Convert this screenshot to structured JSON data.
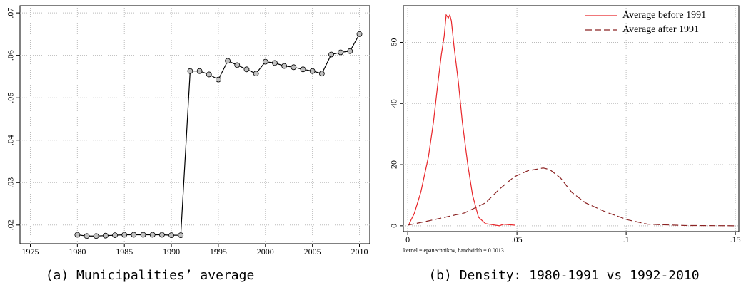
{
  "chart_data": [
    {
      "type": "line",
      "caption": "(a) Municipalities’ average",
      "xlim": [
        1973.9,
        2011.1
      ],
      "xticks": [
        1975,
        1980,
        1985,
        1990,
        1995,
        2000,
        2005,
        2010
      ],
      "ylim": [
        0.0156,
        0.0717
      ],
      "yticks": [
        {
          "value": 0.02,
          "label": ".02"
        },
        {
          "value": 0.03,
          "label": ".03"
        },
        {
          "value": 0.04,
          "label": ".04"
        },
        {
          "value": 0.05,
          "label": ".05"
        },
        {
          "value": 0.06,
          "label": ".06"
        },
        {
          "value": 0.07,
          "label": ".07"
        }
      ],
      "grid": true,
      "series": [
        {
          "color": "#000000",
          "style": "solid",
          "marker": "circle",
          "x": [
            1980,
            1981,
            1982,
            1983,
            1984,
            1985,
            1986,
            1987,
            1988,
            1989,
            1990,
            1991,
            1992,
            1993,
            1994,
            1995,
            1996,
            1997,
            1998,
            1999,
            2000,
            2001,
            2002,
            2003,
            2004,
            2005,
            2006,
            2007,
            2008,
            2009,
            2010
          ],
          "values": [
            0.0177,
            0.0174,
            0.0174,
            0.0175,
            0.0176,
            0.0177,
            0.0177,
            0.0177,
            0.0177,
            0.0177,
            0.0176,
            0.0176,
            0.0563,
            0.0563,
            0.0555,
            0.0543,
            0.0587,
            0.0577,
            0.0567,
            0.0557,
            0.0585,
            0.0582,
            0.0575,
            0.0572,
            0.0567,
            0.0563,
            0.0557,
            0.0602,
            0.0607,
            0.061,
            0.065
          ]
        }
      ]
    },
    {
      "type": "line",
      "caption": "(b) Density: 1980-1991 vs 1992-2010",
      "note": "kernel = epanechnikov, bandwidth = 0.0013",
      "xlim": [
        -0.002,
        0.1516
      ],
      "xticks": [
        0,
        {
          "value": 0.05,
          "label": ".05"
        },
        {
          "value": 0.1,
          "label": ".1"
        },
        {
          "value": 0.15,
          "label": ".15"
        }
      ],
      "ylim": [
        -1.9,
        72
      ],
      "yticks": [
        0,
        20,
        40,
        60
      ],
      "grid": true,
      "legend": "top-right",
      "series": [
        {
          "name": "Average before 1991",
          "color": "#e8262a",
          "style": "solid",
          "x": [
            0.0007,
            0.003,
            0.006,
            0.0095,
            0.0118,
            0.0137,
            0.0154,
            0.0167,
            0.0176,
            0.0186,
            0.0193,
            0.02,
            0.0212,
            0.0232,
            0.025,
            0.0275,
            0.0297,
            0.0324,
            0.0356,
            0.042,
            0.0438,
            0.049
          ],
          "values": [
            0.7,
            4,
            11,
            22.6,
            34,
            46,
            56,
            62,
            69,
            68,
            69,
            67,
            58.7,
            47,
            34,
            20,
            10,
            2.8,
            0.7,
            0,
            0.5,
            0.2
          ]
        },
        {
          "name": "Average after 1991",
          "color": "#8b2323",
          "style": "dashed",
          "x": [
            0,
            0.0095,
            0.026,
            0.0356,
            0.042,
            0.0487,
            0.055,
            0.062,
            0.065,
            0.07,
            0.075,
            0.0814,
            0.091,
            0.101,
            0.11,
            0.127,
            0.15
          ],
          "values": [
            0.2,
            1.6,
            4.2,
            7.5,
            12,
            16,
            18,
            18.9,
            18.4,
            15.6,
            11,
            7.5,
            4.4,
            1.9,
            0.5,
            0.1,
            0
          ]
        }
      ]
    }
  ]
}
